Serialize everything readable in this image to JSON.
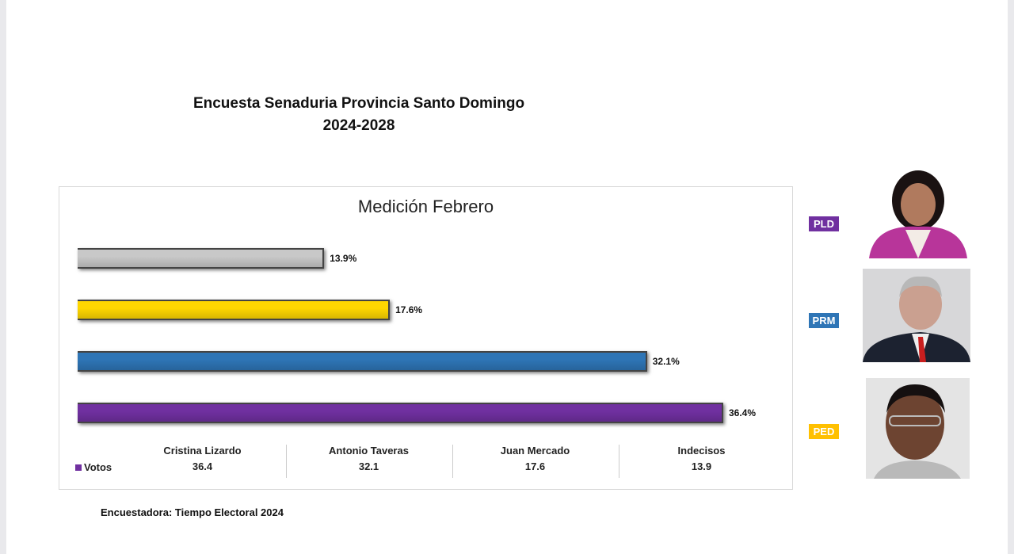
{
  "header": {
    "title_line1": "Encuesta Senaduria Provincia Santo Domingo",
    "title_line2": "2024-2028"
  },
  "source": "Encuestadora: Tiempo Electoral 2024",
  "parties": [
    {
      "label": "PLD",
      "color": "#7030a0"
    },
    {
      "label": "PRM",
      "color": "#2e75b6"
    },
    {
      "label": "PED",
      "color": "#ffc000"
    }
  ],
  "chart_data": {
    "type": "bar",
    "orientation": "horizontal",
    "title": "Medición Febrero",
    "categories": [
      "Cristina Lizardo",
      "Antonio Taveras",
      "Juan Mercado",
      "Indecisos"
    ],
    "series": [
      {
        "name": "Votos",
        "values": [
          36.4,
          32.1,
          17.6,
          13.9
        ],
        "value_labels": [
          "36.4",
          "32.1",
          "17.6",
          "13.9"
        ],
        "color": "#7030a0"
      }
    ],
    "data_labels": [
      "36.4%",
      "32.1%",
      "17.6%",
      "13.9%"
    ],
    "bar_colors": [
      "#7030a0",
      "#2e75b6",
      "#ffd700",
      "#c8c8c8"
    ],
    "xlim": [
      0,
      36.4
    ],
    "legend": "data-table-bottom"
  }
}
